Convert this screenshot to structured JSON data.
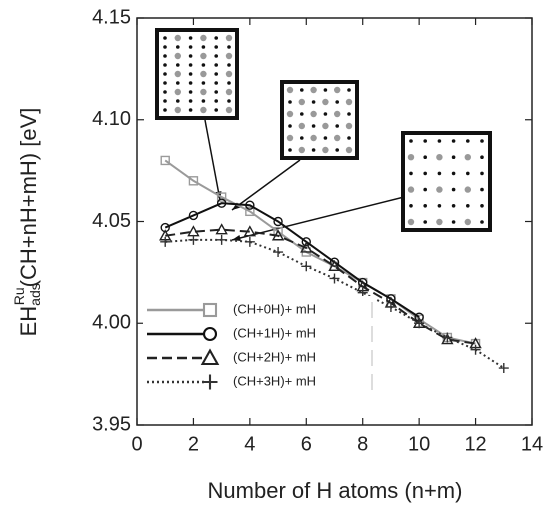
{
  "chart_data": {
    "type": "line",
    "xlabel": "Number of H atoms (n+m)",
    "ylabel_main": "EH",
    "ylabel_sub": "ads",
    "ylabel_sup": "Ru",
    "ylabel_rest": "(CH+nH+mH) [eV]",
    "xlim": [
      0,
      14
    ],
    "xticks": [
      0,
      2,
      4,
      6,
      8,
      10,
      12,
      14
    ],
    "ylim": [
      3.95,
      4.15
    ],
    "yticks": [
      3.95,
      {
        "value": 4,
        "label": "4.00"
      },
      4.05,
      {
        "value": 4.1,
        "label": "4.10"
      },
      4.15
    ],
    "legend": "lower left",
    "series": [
      {
        "name": "(CH+0H)+ mH",
        "color": "#9a9a9a",
        "linestyle": "solid",
        "marker": "square",
        "x": [
          1,
          2,
          3,
          4,
          5,
          6,
          7,
          8,
          9,
          10,
          11,
          12
        ],
        "values": [
          4.08,
          4.07,
          4.062,
          4.055,
          4.045,
          4.035,
          4.028,
          4.02,
          4.012,
          4.002,
          3.993,
          3.99
        ]
      },
      {
        "name": "(CH+1H)+ mH",
        "color": "#111111",
        "linestyle": "solid",
        "marker": "circle",
        "x": [
          1,
          2,
          3,
          4,
          5,
          6,
          7,
          8,
          9,
          10
        ],
        "values": [
          4.047,
          4.053,
          4.059,
          4.058,
          4.05,
          4.04,
          4.03,
          4.02,
          4.012,
          4.003
        ]
      },
      {
        "name": "(CH+2H)+ mH",
        "color": "#222222",
        "linestyle": "dashed",
        "marker": "triangle",
        "x": [
          1,
          2,
          3,
          4,
          5,
          6,
          7,
          8,
          9,
          10,
          11,
          12
        ],
        "values": [
          4.043,
          4.045,
          4.046,
          4.045,
          4.043,
          4.037,
          4.028,
          4.018,
          4.01,
          4.0,
          3.992,
          3.99
        ]
      },
      {
        "name": "(CH+3H)+ mH",
        "color": "#333333",
        "linestyle": "dotted",
        "marker": "plus",
        "x": [
          1,
          2,
          3,
          4,
          5,
          6,
          7,
          8,
          9,
          10,
          11,
          12,
          13
        ],
        "values": [
          4.04,
          4.041,
          4.041,
          4.04,
          4.035,
          4.028,
          4.022,
          4.015,
          4.008,
          4.0,
          3.993,
          3.987,
          3.978
        ]
      }
    ]
  }
}
